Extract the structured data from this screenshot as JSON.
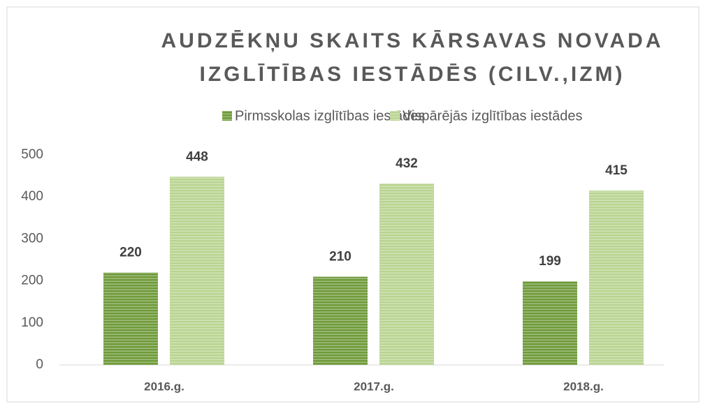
{
  "chart_data": {
    "type": "bar",
    "title": [
      "AUDZĒKŅU SKAITS KĀRSAVAS NOVADA",
      "IZGLĪTĪBAS IESTĀDĒS (CILV.,IZM)"
    ],
    "categories": [
      "2016.g.",
      "2017.g.",
      "2018.g."
    ],
    "series": [
      {
        "name": "Pirmsskolas izglītības iestādes",
        "color": "#6f9a3a",
        "values": [
          220,
          210,
          199
        ]
      },
      {
        "name": "Vispārējās izglītības iestādes",
        "color": "#b9d491",
        "values": [
          448,
          432,
          415
        ]
      }
    ],
    "ylim": [
      0,
      500
    ],
    "yticks": [
      0,
      100,
      200,
      300,
      400,
      500
    ],
    "grid": false,
    "legend": "top"
  }
}
